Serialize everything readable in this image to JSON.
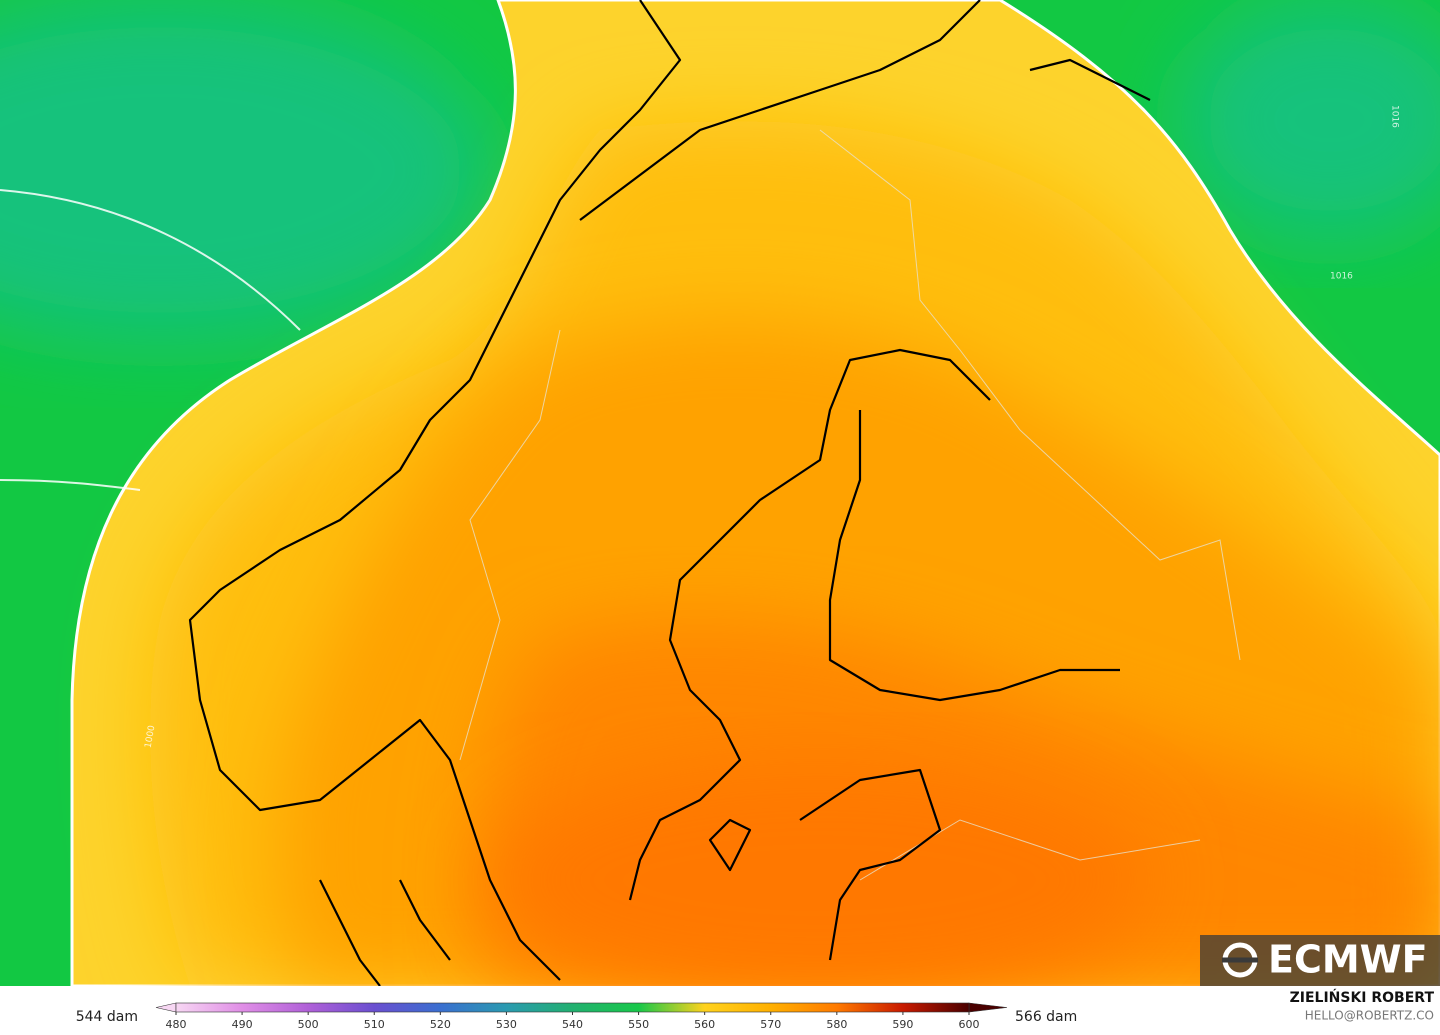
{
  "map": {
    "contour_labels": [
      "1016",
      "1016",
      "1000"
    ],
    "legend": {
      "min_label": "544 dam",
      "max_label": "566 dam",
      "ticks": [
        480,
        490,
        500,
        510,
        520,
        530,
        540,
        550,
        560,
        570,
        580,
        590,
        600
      ],
      "colors": [
        "#f7d7f3",
        "#e08ee6",
        "#b060d8",
        "#6a4fd0",
        "#3a6fd0",
        "#2a9ab0",
        "#22b070",
        "#18c84a",
        "#ffd21e",
        "#ffb000",
        "#ff7a00",
        "#c81a00",
        "#4a0000"
      ]
    },
    "logo": "ECMWF",
    "credit": {
      "name": "ZIELIŃSKI ROBERT",
      "email": "HELLO@ROBERTZ.CO"
    }
  }
}
